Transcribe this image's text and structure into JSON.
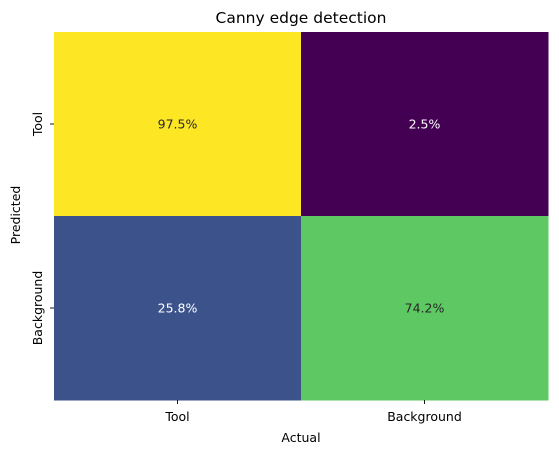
{
  "chart_data": {
    "type": "heatmap",
    "title": "Canny edge detection",
    "xlabel": "Actual",
    "ylabel": "Predicted",
    "x_categories": [
      "Tool",
      "Background"
    ],
    "y_categories": [
      "Tool",
      "Background"
    ],
    "values": [
      [
        97.5,
        2.5
      ],
      [
        25.8,
        74.2
      ]
    ],
    "cell_labels": [
      [
        "97.5%",
        "2.5%"
      ],
      [
        "25.8%",
        "74.2%"
      ]
    ],
    "colormap": "viridis",
    "colorbar": false,
    "cell_colors": [
      [
        "#fde725",
        "#440154"
      ],
      [
        "#3b528b",
        "#5ec962"
      ]
    ],
    "label_colors": [
      [
        "#262626",
        "#ffffff"
      ],
      [
        "#ffffff",
        "#262626"
      ]
    ]
  }
}
